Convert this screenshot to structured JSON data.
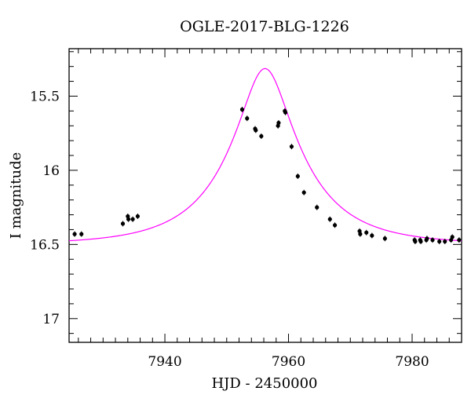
{
  "chart_data": {
    "type": "scatter",
    "title": "OGLE-2017-BLG-1226",
    "xlabel": "HJD - 2450000",
    "ylabel": "I magnitude",
    "xlim": [
      7924.5,
      7988
    ],
    "ylim": [
      17.16,
      15.18
    ],
    "y_inverted": true,
    "x_ticks": [
      7940,
      7960,
      7980
    ],
    "y_ticks": [
      15.5,
      16,
      16.5,
      17
    ],
    "y_tick_labels": [
      "15.5",
      "16",
      "16.5",
      "17"
    ],
    "x_tick_labels": [
      "7940",
      "7960",
      "7980"
    ],
    "grid": false,
    "legend": "none",
    "colors": {
      "points": "#000000",
      "model": "#ff00ff"
    },
    "series": [
      {
        "kind": "points",
        "x": [
          7925.4,
          7926.5,
          7933.2,
          7934.0,
          7934.1,
          7934.8,
          7935.6,
          7952.5,
          7953.3,
          7954.6,
          7954.7,
          7955.6,
          7958.3,
          7958.4,
          7959.4,
          7959.5,
          7960.5,
          7961.5,
          7962.5,
          7964.6,
          7966.7,
          7967.5,
          7971.5,
          7971.6,
          7972.6,
          7973.5,
          7975.6,
          7980.4,
          7980.5,
          7981.3,
          7981.4,
          7982.3,
          7982.4,
          7983.3,
          7984.4,
          7985.3,
          7986.3,
          7986.5,
          7987.6
        ],
        "y": [
          16.43,
          16.43,
          16.36,
          16.31,
          16.33,
          16.33,
          16.31,
          15.59,
          15.65,
          15.72,
          15.73,
          15.77,
          15.7,
          15.68,
          15.6,
          15.61,
          15.84,
          16.04,
          16.15,
          16.25,
          16.33,
          16.37,
          16.41,
          16.43,
          16.42,
          16.44,
          16.46,
          16.47,
          16.48,
          16.47,
          16.48,
          16.47,
          16.46,
          16.47,
          16.48,
          16.48,
          16.47,
          16.45,
          16.47
        ]
      },
      {
        "kind": "model",
        "t0": 7956.2,
        "tE": 12.5,
        "u0": 0.3,
        "fs": 0.81,
        "baseline_mag": 16.5
      }
    ]
  }
}
